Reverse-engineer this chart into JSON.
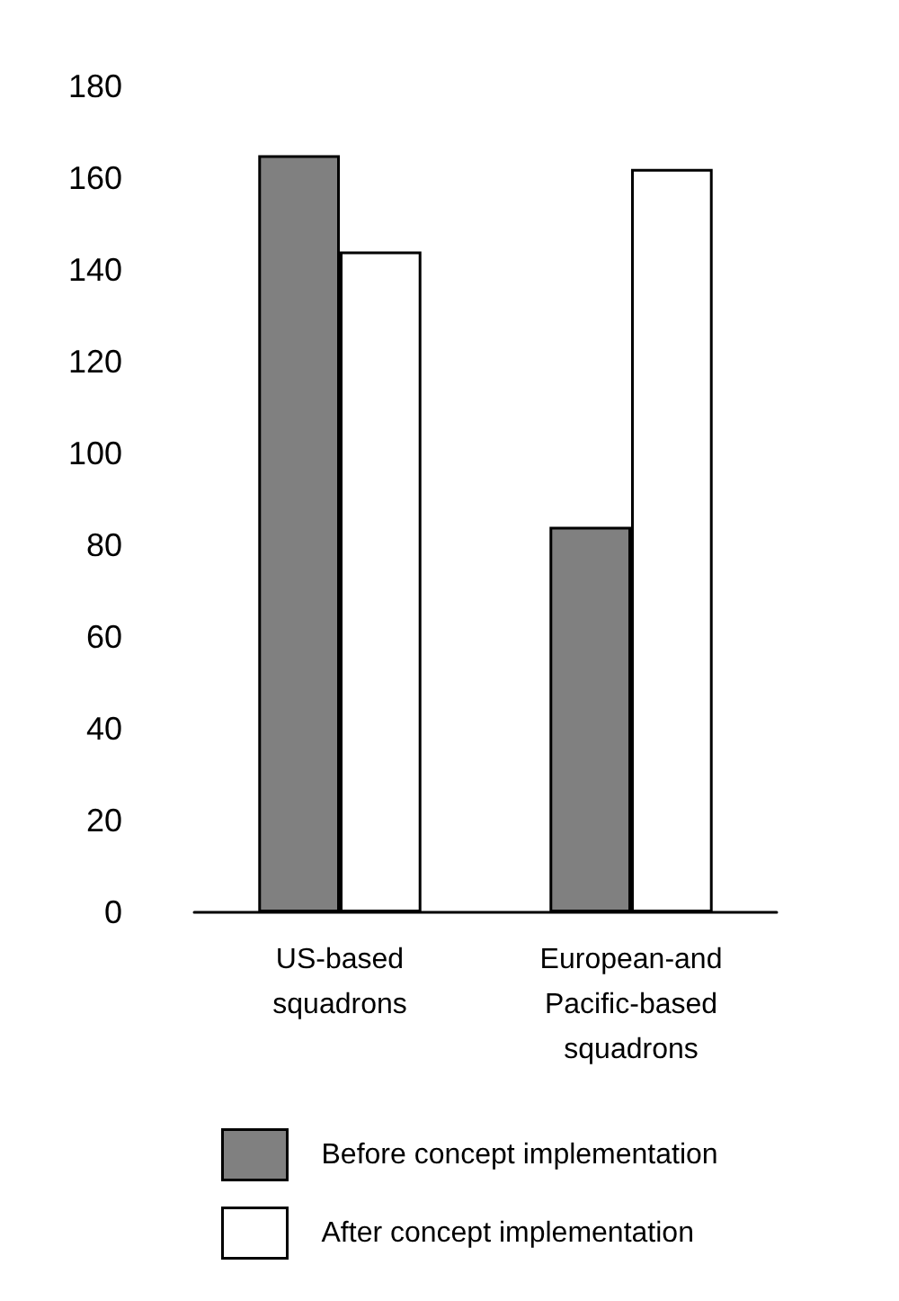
{
  "chart_data": {
    "type": "bar",
    "categories": [
      "US-based\nsquadrons",
      "European-and\nPacific-based\nsquadrons"
    ],
    "series": [
      {
        "name": "Before concept implementation",
        "color": "#808080",
        "values": [
          165,
          84
        ]
      },
      {
        "name": "After concept implementation",
        "color": "#ffffff",
        "values": [
          144,
          162
        ]
      }
    ],
    "ylim": [
      0,
      180
    ],
    "yticks": [
      0,
      20,
      40,
      60,
      80,
      100,
      120,
      140,
      160,
      180
    ],
    "grid": false,
    "legend": "bottom"
  }
}
